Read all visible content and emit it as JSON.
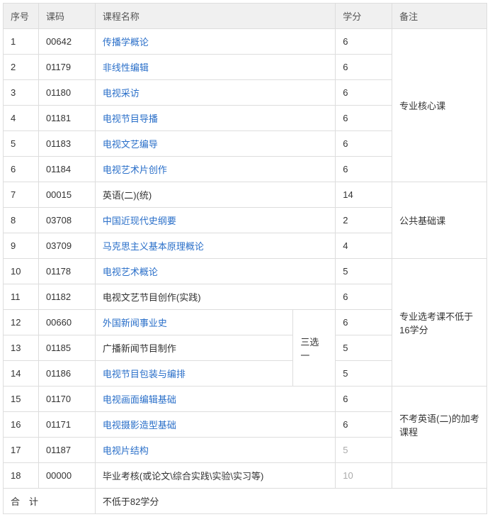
{
  "header": {
    "seq": "序号",
    "code": "课码",
    "name": "课程名称",
    "credit": "学分",
    "note": "备注"
  },
  "groups": [
    {
      "note": "专业核心课",
      "rows": [
        {
          "seq": "1",
          "code": "00642",
          "name": "传播学概论",
          "link": true,
          "credit": "6",
          "credit_muted": false
        },
        {
          "seq": "2",
          "code": "01179",
          "name": "非线性编辑",
          "link": true,
          "credit": "6",
          "credit_muted": false
        },
        {
          "seq": "3",
          "code": "01180",
          "name": "电视采访",
          "link": true,
          "credit": "6",
          "credit_muted": false
        },
        {
          "seq": "4",
          "code": "01181",
          "name": "电视节目导播",
          "link": true,
          "credit": "6",
          "credit_muted": false
        },
        {
          "seq": "5",
          "code": "01183",
          "name": "电视文艺编导",
          "link": true,
          "credit": "6",
          "credit_muted": false
        },
        {
          "seq": "6",
          "code": "01184",
          "name": "电视艺术片创作",
          "link": true,
          "credit": "6",
          "credit_muted": false
        }
      ]
    },
    {
      "note": "公共基础课",
      "rows": [
        {
          "seq": "7",
          "code": "00015",
          "name": "英语(二)(统)",
          "link": false,
          "credit": "14",
          "credit_muted": false
        },
        {
          "seq": "8",
          "code": "03708",
          "name": "中国近现代史纲要",
          "link": true,
          "credit": "2",
          "credit_muted": false
        },
        {
          "seq": "9",
          "code": "03709",
          "name": "马克思主义基本原理概论",
          "link": true,
          "credit": "4",
          "credit_muted": false
        }
      ]
    }
  ],
  "group3": {
    "note": "专业选考课不低于16学分",
    "r10": {
      "seq": "10",
      "code": "01178",
      "name": "电视艺术概论",
      "credit": "5"
    },
    "r11": {
      "seq": "11",
      "code": "01182",
      "name": "电视文艺节目创作(实践)",
      "credit": "6"
    },
    "r12": {
      "seq": "12",
      "code": "00660",
      "name": "外国新闻事业史",
      "credit": "6"
    },
    "r13": {
      "seq": "13",
      "code": "01185",
      "name": "广播新闻节目制作",
      "credit": "5"
    },
    "r14": {
      "seq": "14",
      "code": "01186",
      "name": "电视节目包装与编排",
      "credit": "5"
    },
    "sub": "三选一"
  },
  "group4": {
    "note": "不考英语(二)的加考课程",
    "rows": [
      {
        "seq": "15",
        "code": "01170",
        "name": "电视画面编辑基础",
        "link": true,
        "credit": "6",
        "credit_muted": false
      },
      {
        "seq": "16",
        "code": "01171",
        "name": "电视摄影造型基础",
        "link": true,
        "credit": "6",
        "credit_muted": false
      },
      {
        "seq": "17",
        "code": "01187",
        "name": "电视片结构",
        "link": true,
        "credit": "5",
        "credit_muted": true
      }
    ]
  },
  "row18": {
    "seq": "18",
    "code": "00000",
    "name": "毕业考核(或论文\\综合实践\\实验\\实习等)",
    "credit": "10",
    "credit_muted": true
  },
  "total": {
    "label": "合　计",
    "text": "不低于82学分"
  }
}
